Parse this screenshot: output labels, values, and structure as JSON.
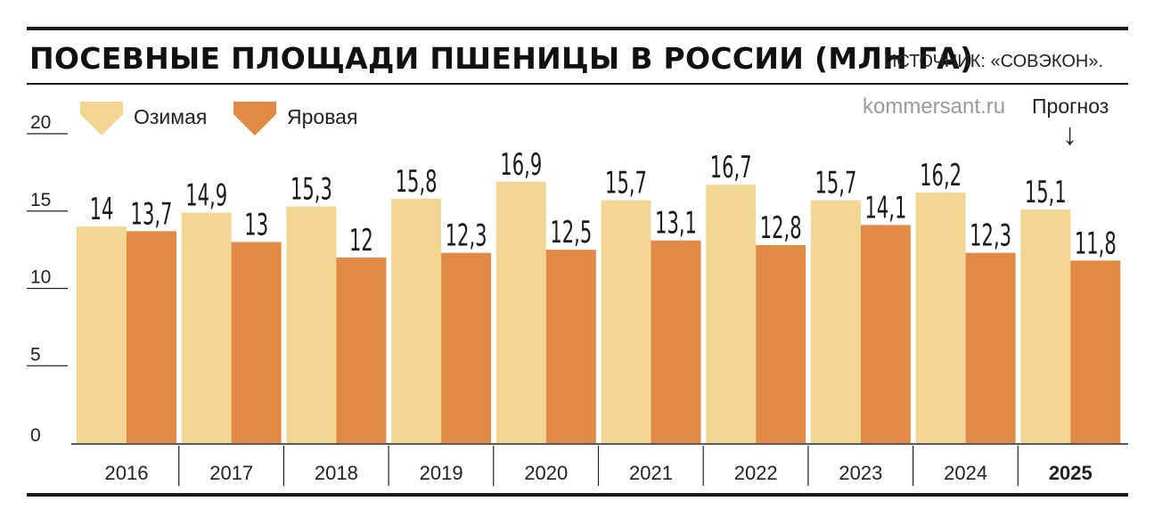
{
  "title": "ПОСЕВНЫЕ ПЛОЩАДИ ПШЕНИЦЫ В РОССИИ (МЛН ГА)",
  "source": "ИСТОЧНИК: «СОВЭКОН».",
  "watermark": "kommersant.ru",
  "forecast_label": "Прогноз",
  "forecast_arrow": "↓",
  "colors": {
    "winter": "#F3D594",
    "spring": "#E08A45"
  },
  "chart_data": {
    "type": "bar",
    "categories": [
      "2016",
      "2017",
      "2018",
      "2019",
      "2020",
      "2021",
      "2022",
      "2023",
      "2024",
      "2025"
    ],
    "highlight_category": "2025",
    "series": [
      {
        "name": "Озимая",
        "values": [
          14,
          14.9,
          15.3,
          15.8,
          16.9,
          15.7,
          16.7,
          15.7,
          16.2,
          15.1
        ],
        "labels": [
          "14",
          "14,9",
          "15,3",
          "15,8",
          "16,9",
          "15,7",
          "16,7",
          "15,7",
          "16,2",
          "15,1"
        ]
      },
      {
        "name": "Яровая",
        "values": [
          13.7,
          13,
          12,
          12.3,
          12.5,
          13.1,
          12.8,
          14.1,
          12.3,
          11.8
        ],
        "labels": [
          "13,7",
          "13",
          "12",
          "12,3",
          "12,5",
          "13,1",
          "12,8",
          "14,1",
          "12,3",
          "11,8"
        ]
      }
    ],
    "yticks": [
      "0",
      "5",
      "10",
      "15",
      "20"
    ],
    "ylim": [
      0,
      20
    ],
    "grid": false,
    "legend_position": "top-left"
  }
}
